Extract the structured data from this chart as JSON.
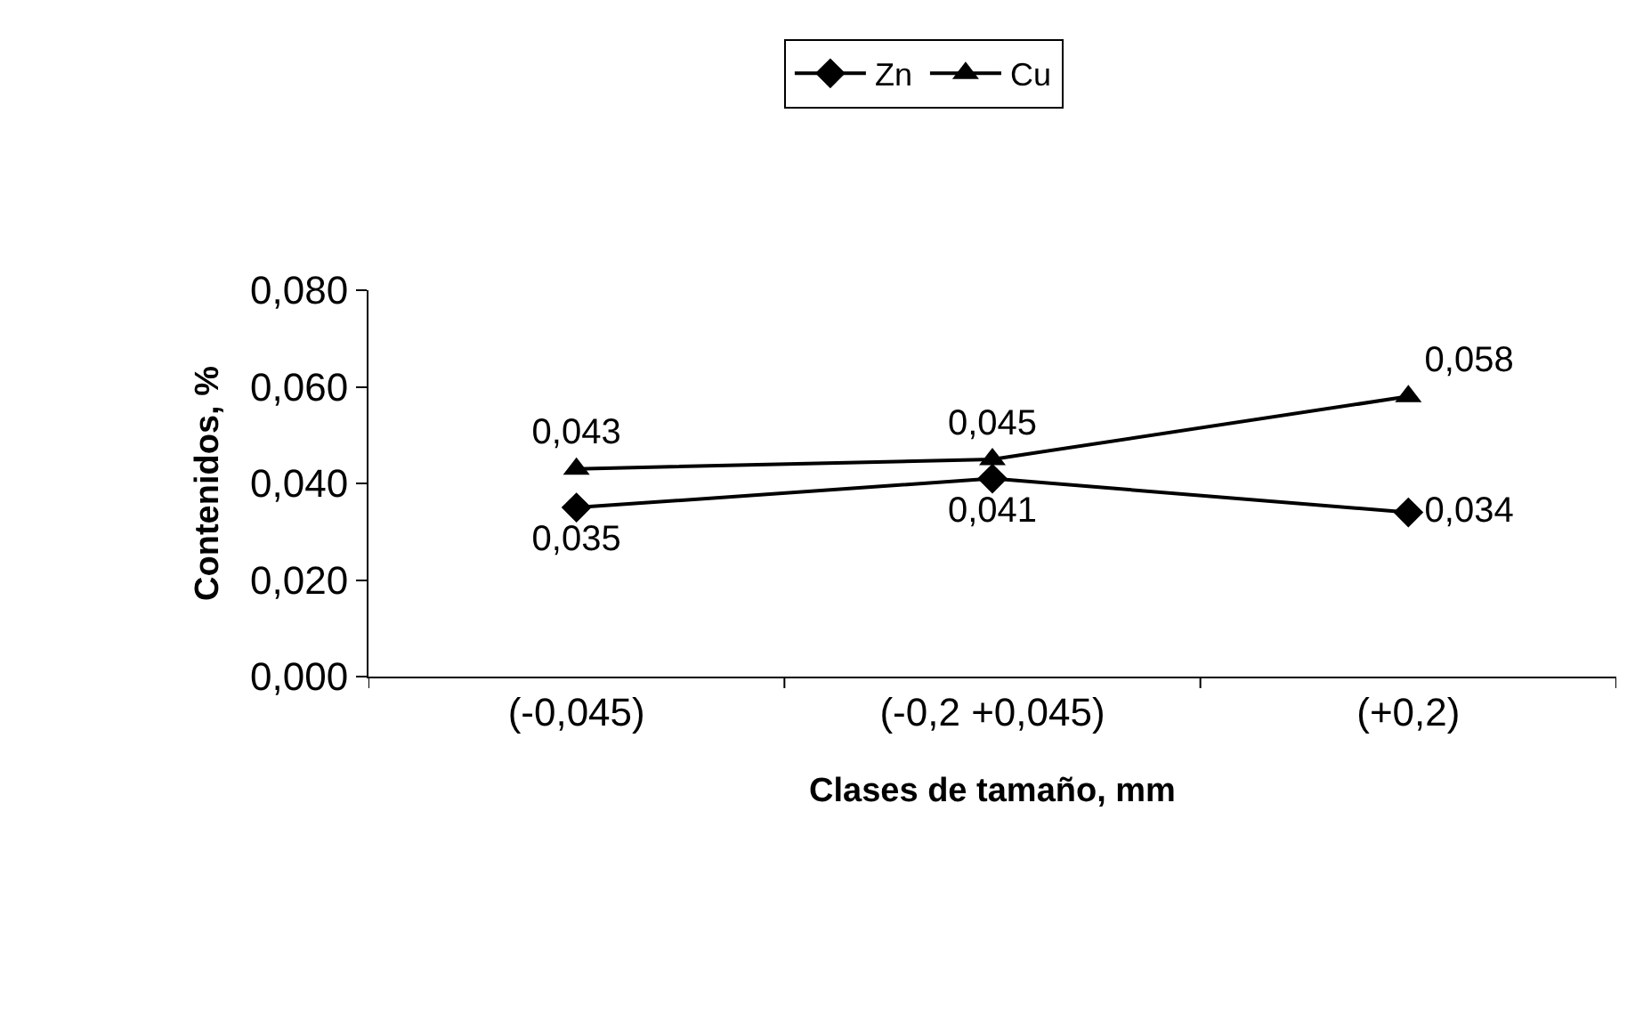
{
  "chart_data": {
    "type": "line",
    "xlabel": "Clases de tamaño, mm",
    "ylabel": "Contenidos, %",
    "categories": [
      "(-0,045)",
      "(-0,2 +0,045)",
      "(+0,2)"
    ],
    "series": [
      {
        "name": "Zn",
        "color": "#000000",
        "marker": "diamond",
        "values": [
          0.035,
          0.041,
          0.034
        ],
        "value_labels": [
          "0,035",
          "0,041",
          "0,034"
        ]
      },
      {
        "name": "Cu",
        "color": "#000000",
        "marker": "triangle",
        "values": [
          0.043,
          0.045,
          0.058
        ],
        "value_labels": [
          "0,043",
          "0,045",
          "0,058"
        ]
      }
    ],
    "ylim": [
      0,
      0.08
    ],
    "yticks": [
      {
        "value": 0,
        "label": "0,000"
      },
      {
        "value": 0.02,
        "label": "0,020"
      },
      {
        "value": 0.04,
        "label": "0,040"
      },
      {
        "value": 0.06,
        "label": "0,060"
      },
      {
        "value": 0.08,
        "label": "0,080"
      }
    ],
    "legend": "top",
    "line_style": "solid"
  }
}
